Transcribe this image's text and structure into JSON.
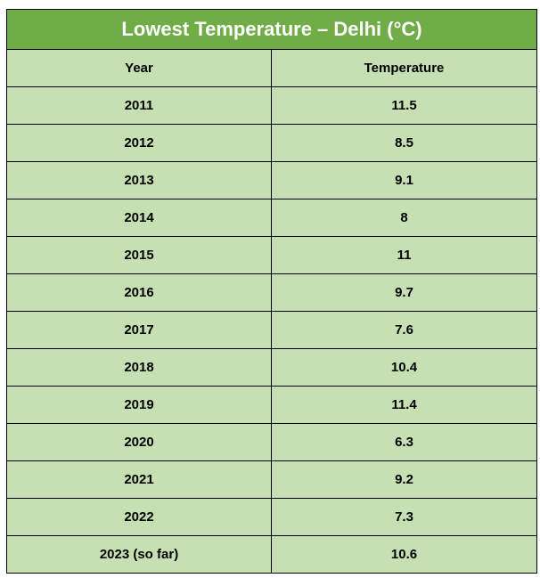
{
  "colors": {
    "title_bg": "#70ad47",
    "title_text": "#ffffff",
    "cell_bg": "#c6e0b4",
    "border": "#000000"
  },
  "chart_data": {
    "type": "table",
    "title": "Lowest Temperature – Delhi (°C)",
    "columns": [
      "Year",
      "Temperature"
    ],
    "rows": [
      [
        "2011",
        "11.5"
      ],
      [
        "2012",
        "8.5"
      ],
      [
        "2013",
        "9.1"
      ],
      [
        "2014",
        "8"
      ],
      [
        "2015",
        "11"
      ],
      [
        "2016",
        "9.7"
      ],
      [
        "2017",
        "7.6"
      ],
      [
        "2018",
        "10.4"
      ],
      [
        "2019",
        "11.4"
      ],
      [
        "2020",
        "6.3"
      ],
      [
        "2021",
        "9.2"
      ],
      [
        "2022",
        "7.3"
      ],
      [
        "2023 (so far)",
        "10.6"
      ]
    ]
  }
}
